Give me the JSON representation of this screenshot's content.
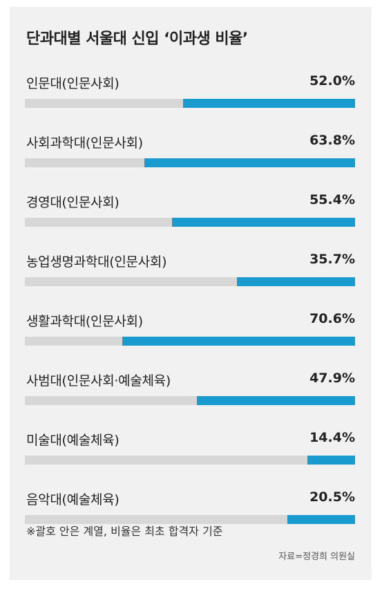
{
  "title": "단과대별 서울대 신입 ‘이과생 비율’",
  "footnote": "※괄호 안은 계열, 비율은 최초 합격자 기준",
  "source": "자료=정경희 의원실",
  "colors": {
    "bar": "#1a9bd0",
    "track": "#d7d7d7",
    "background": "#f1f1f1"
  },
  "chart_data": {
    "type": "bar",
    "orientation": "horizontal",
    "title": "단과대별 서울대 신입 ‘이과생 비율’",
    "unit": "%",
    "ylim": [
      0,
      100
    ],
    "categories": [
      "인문대(인문사회)",
      "사회과학대(인문사회)",
      "경영대(인문사회)",
      "농업생명과학대(인문사회)",
      "생활과학대(인문사회)",
      "사범대(인문사회·예술체육)",
      "미술대(예술체육)",
      "음악대(예술체육)"
    ],
    "values": [
      52.0,
      63.8,
      55.4,
      35.7,
      70.6,
      47.9,
      14.4,
      20.5
    ],
    "value_labels": [
      "52.0%",
      "63.8%",
      "55.4%",
      "35.7%",
      "70.6%",
      "47.9%",
      "14.4%",
      "20.5%"
    ]
  }
}
